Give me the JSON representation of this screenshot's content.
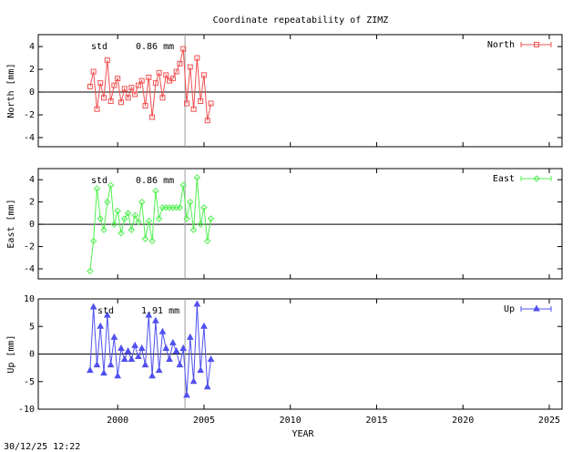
{
  "timestamp": "30/12/25 12:22",
  "chart_data": [
    {
      "type": "line",
      "title": "Coordinate repeatability of ZIMZ",
      "ylabel": "North [mm]",
      "std_label": "std",
      "std_value": "0.86 mm",
      "x": [
        1998.4,
        1998.6,
        1998.8,
        1999.0,
        1999.2,
        1999.4,
        1999.6,
        1999.8,
        2000.0,
        2000.2,
        2000.4,
        2000.6,
        2000.8,
        2001.0,
        2001.2,
        2001.4,
        2001.6,
        2001.8,
        2002.0,
        2002.2,
        2002.4,
        2002.6,
        2002.8,
        2003.0,
        2003.2,
        2003.4,
        2003.6,
        2003.8,
        2004.0,
        2004.2,
        2004.4,
        2004.6,
        2004.8,
        2005.0,
        2005.2,
        2005.4
      ],
      "series": [
        {
          "name": "North",
          "color": "#f05050",
          "values": [
            0.5,
            1.8,
            -1.5,
            0.8,
            -0.5,
            2.8,
            -0.8,
            0.6,
            1.2,
            -0.9,
            0.3,
            -0.5,
            0.4,
            -0.2,
            0.6,
            1.0,
            -1.2,
            1.3,
            -2.2,
            0.8,
            1.7,
            -0.5,
            1.5,
            1.0,
            1.2,
            1.8,
            2.5,
            3.8,
            -1.0,
            2.2,
            -1.5,
            3.0,
            -0.8,
            1.5,
            -2.5,
            -1.0
          ]
        }
      ],
      "xlim": [
        1995.4,
        2025.74
      ],
      "ylim": [
        -4.8,
        5.05
      ],
      "yticks": [
        -4,
        -2,
        0,
        2,
        4
      ],
      "vline_x": 2003.9
    },
    {
      "type": "line",
      "ylabel": "East [mm]",
      "std_label": "std",
      "std_value": "0.86 mm",
      "x": [
        1998.4,
        1998.6,
        1998.8,
        1999.0,
        1999.2,
        1999.4,
        1999.6,
        1999.8,
        2000.0,
        2000.2,
        2000.4,
        2000.6,
        2000.8,
        2001.0,
        2001.2,
        2001.4,
        2001.6,
        2001.8,
        2002.0,
        2002.2,
        2002.4,
        2002.6,
        2002.8,
        2003.0,
        2003.2,
        2003.4,
        2003.6,
        2003.8,
        2004.0,
        2004.2,
        2004.4,
        2004.6,
        2004.8,
        2005.0,
        2005.2,
        2005.4
      ],
      "series": [
        {
          "name": "East",
          "color": "#50f050",
          "values": [
            -4.2,
            -1.5,
            3.2,
            0.5,
            -0.5,
            2.0,
            3.5,
            0.0,
            1.2,
            -0.8,
            0.5,
            1.0,
            -0.5,
            0.8,
            0.2,
            2.0,
            -1.3,
            0.3,
            -1.5,
            3.0,
            0.5,
            1.5,
            1.5,
            1.5,
            1.5,
            1.5,
            1.5,
            3.5,
            0.5,
            2.0,
            -0.5,
            4.2,
            0.0,
            1.5,
            -1.5,
            0.5
          ]
        }
      ],
      "xlim": [
        1995.4,
        2025.74
      ],
      "ylim": [
        -4.9,
        5.0
      ],
      "yticks": [
        -4,
        -2,
        0,
        2,
        4
      ],
      "vline_x": 2003.9
    },
    {
      "type": "line",
      "ylabel": "Up [mm]",
      "xlabel": "YEAR",
      "std_label": "std",
      "std_value": "1.91 mm",
      "x": [
        1998.4,
        1998.6,
        1998.8,
        1999.0,
        1999.2,
        1999.4,
        1999.6,
        1999.8,
        2000.0,
        2000.2,
        2000.4,
        2000.6,
        2000.8,
        2001.0,
        2001.2,
        2001.4,
        2001.6,
        2001.8,
        2002.0,
        2002.2,
        2002.4,
        2002.6,
        2002.8,
        2003.0,
        2003.2,
        2003.4,
        2003.6,
        2003.8,
        2004.0,
        2004.2,
        2004.4,
        2004.6,
        2004.8,
        2005.0,
        2005.2,
        2005.4
      ],
      "series": [
        {
          "name": "Up",
          "color": "#5050f0",
          "values": [
            -3,
            8.5,
            -2,
            5,
            -3.5,
            7,
            -2,
            3,
            -4,
            1,
            -1,
            0.5,
            -1,
            1.5,
            -0.5,
            1,
            -2,
            7,
            -4,
            6,
            -3,
            4,
            1,
            -1,
            2,
            0.5,
            -2,
            1,
            -7.5,
            3,
            -5,
            9,
            -3,
            5,
            -6,
            -1
          ]
        }
      ],
      "xlim": [
        1995.4,
        2025.74
      ],
      "ylim": [
        -10,
        10
      ],
      "yticks": [
        -10,
        -5,
        0,
        5,
        10
      ],
      "xticks": [
        2000,
        2005,
        2010,
        2015,
        2020,
        2025
      ],
      "vline_x": 2003.9
    }
  ]
}
